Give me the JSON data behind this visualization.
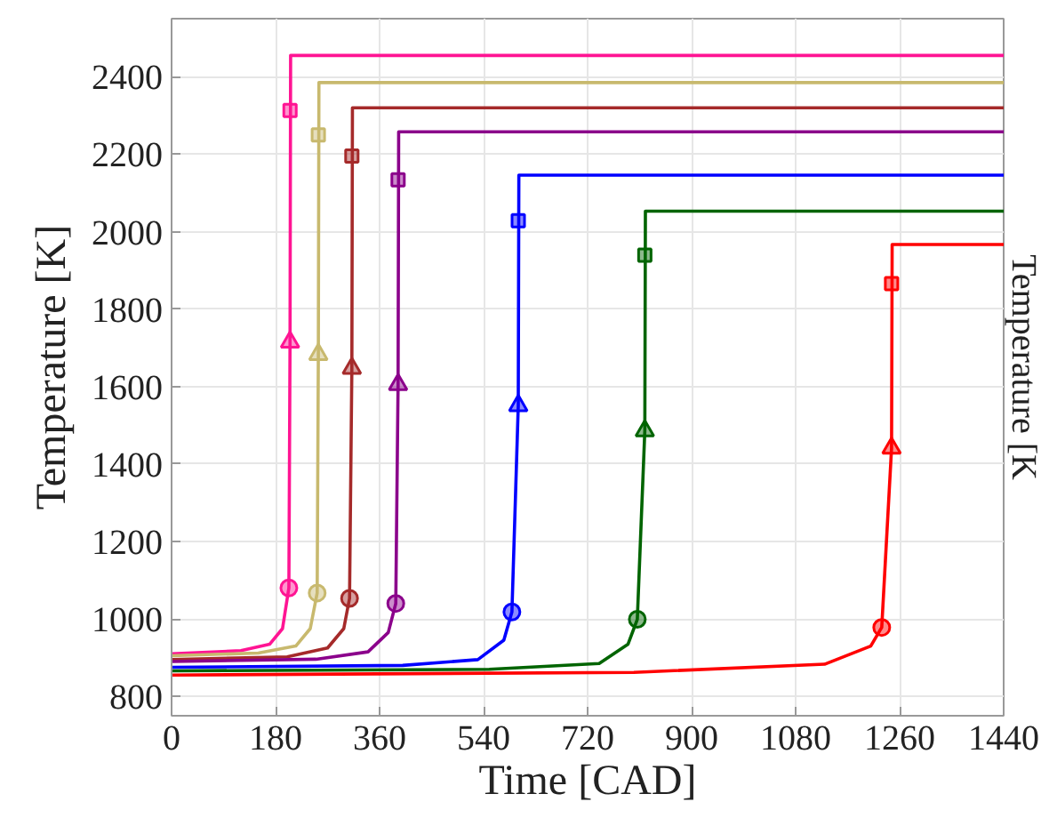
{
  "chart_data": {
    "type": "line",
    "xlabel": "Time [CAD]",
    "ylabel": "Temperature [K]",
    "xlim": [
      0,
      1440
    ],
    "ylim": [
      750,
      2550
    ],
    "xticks": [
      0,
      180,
      360,
      540,
      720,
      900,
      1080,
      1260,
      1440
    ],
    "yticks": [
      800,
      1000,
      1200,
      1400,
      1600,
      1800,
      2000,
      2200,
      2400
    ],
    "grid": true,
    "annotations": [
      "Temperature [K"
    ],
    "series": [
      {
        "color": "#ff1493",
        "x": [
          0,
          120,
          170,
          192,
          203,
          205,
          206,
          1440
        ],
        "values": [
          910,
          918,
          935,
          975,
          1080,
          1715,
          2455,
          2455
        ]
      },
      {
        "color": "#c8b96e",
        "x": [
          0,
          150,
          215,
          240,
          252,
          254,
          255,
          1440
        ],
        "values": [
          905,
          912,
          930,
          975,
          1067,
          1683,
          2385,
          2385
        ]
      },
      {
        "color": "#a52a2a",
        "x": [
          0,
          200,
          270,
          298,
          308,
          312,
          313,
          1440
        ],
        "values": [
          895,
          902,
          925,
          975,
          1053,
          1647,
          2320,
          2320
        ]
      },
      {
        "color": "#8b008b",
        "x": [
          0,
          250,
          340,
          375,
          388,
          392,
          393,
          1440
        ],
        "values": [
          890,
          896,
          915,
          965,
          1040,
          1605,
          2258,
          2258
        ]
      },
      {
        "color": "#0000ff",
        "x": [
          0,
          400,
          530,
          575,
          589,
          600,
          601,
          1440
        ],
        "values": [
          875,
          880,
          895,
          945,
          1018,
          1551,
          2146,
          2146
        ]
      },
      {
        "color": "#006400",
        "x": [
          0,
          550,
          740,
          790,
          806,
          819,
          820,
          1440
        ],
        "values": [
          866,
          870,
          885,
          935,
          999,
          1486,
          2053,
          2053
        ]
      },
      {
        "color": "#ff0000",
        "x": [
          0,
          800,
          1130,
          1210,
          1229,
          1246,
          1247,
          1440
        ],
        "values": [
          855,
          862,
          883,
          930,
          978,
          1441,
          1967,
          1967
        ]
      },
      {
        "type": "scatter",
        "marker": "circle",
        "x": [
          203,
          252,
          308,
          388,
          589,
          806,
          1229
        ],
        "values": [
          1080,
          1067,
          1053,
          1040,
          1018,
          999,
          978
        ],
        "colors": [
          "#ff1493",
          "#c8b96e",
          "#a52a2a",
          "#8b008b",
          "#0000ff",
          "#006400",
          "#ff0000"
        ]
      },
      {
        "type": "scatter",
        "marker": "triangle",
        "x": [
          205,
          254,
          312,
          392,
          600,
          819,
          1246
        ],
        "values": [
          1715,
          1683,
          1647,
          1605,
          1551,
          1486,
          1441
        ],
        "colors": [
          "#ff1493",
          "#c8b96e",
          "#a52a2a",
          "#8b008b",
          "#0000ff",
          "#006400",
          "#ff0000"
        ]
      },
      {
        "type": "scatter",
        "marker": "square",
        "x": [
          205,
          254,
          312,
          392,
          600,
          819,
          1246
        ],
        "values": [
          2313,
          2250,
          2195,
          2134,
          2028,
          1939,
          1866
        ],
        "colors": [
          "#ff1493",
          "#c8b96e",
          "#a52a2a",
          "#8b008b",
          "#0000ff",
          "#006400",
          "#ff0000"
        ]
      }
    ]
  }
}
